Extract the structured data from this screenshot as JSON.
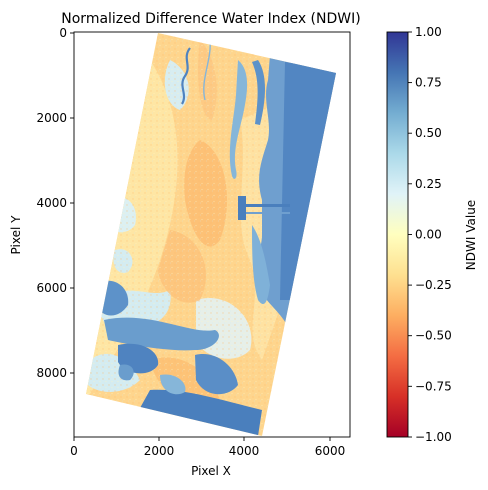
{
  "figure": {
    "title": "Normalized Difference Water Index (NDWI)",
    "x_axis_label": "Pixel X",
    "y_axis_label": "Pixel Y",
    "x_ticks": [
      "0",
      "2000",
      "4000",
      "6000"
    ],
    "y_ticks": [
      "0",
      "2000",
      "4000",
      "6000",
      "8000"
    ]
  },
  "colorbar": {
    "label": "NDWI Value",
    "colormap": "RdYlBu",
    "ticks": [
      "1.00",
      "0.75",
      "0.50",
      "0.25",
      "0.00",
      "−0.25",
      "−0.50",
      "−0.75",
      "−1.00"
    ],
    "stops": [
      "#a50026",
      "#d73027",
      "#f46d43",
      "#fdae61",
      "#fee090",
      "#ffffbf",
      "#e0f3f8",
      "#abd9e9",
      "#74add1",
      "#4575b4",
      "#313695"
    ]
  },
  "colors": {
    "land_dry": "#fdc57a",
    "land_mid": "#fee9a6",
    "vegetation": "#d2ecf0",
    "water_deep": "#4a80bd",
    "water_shallow": "#86b6d9"
  }
}
